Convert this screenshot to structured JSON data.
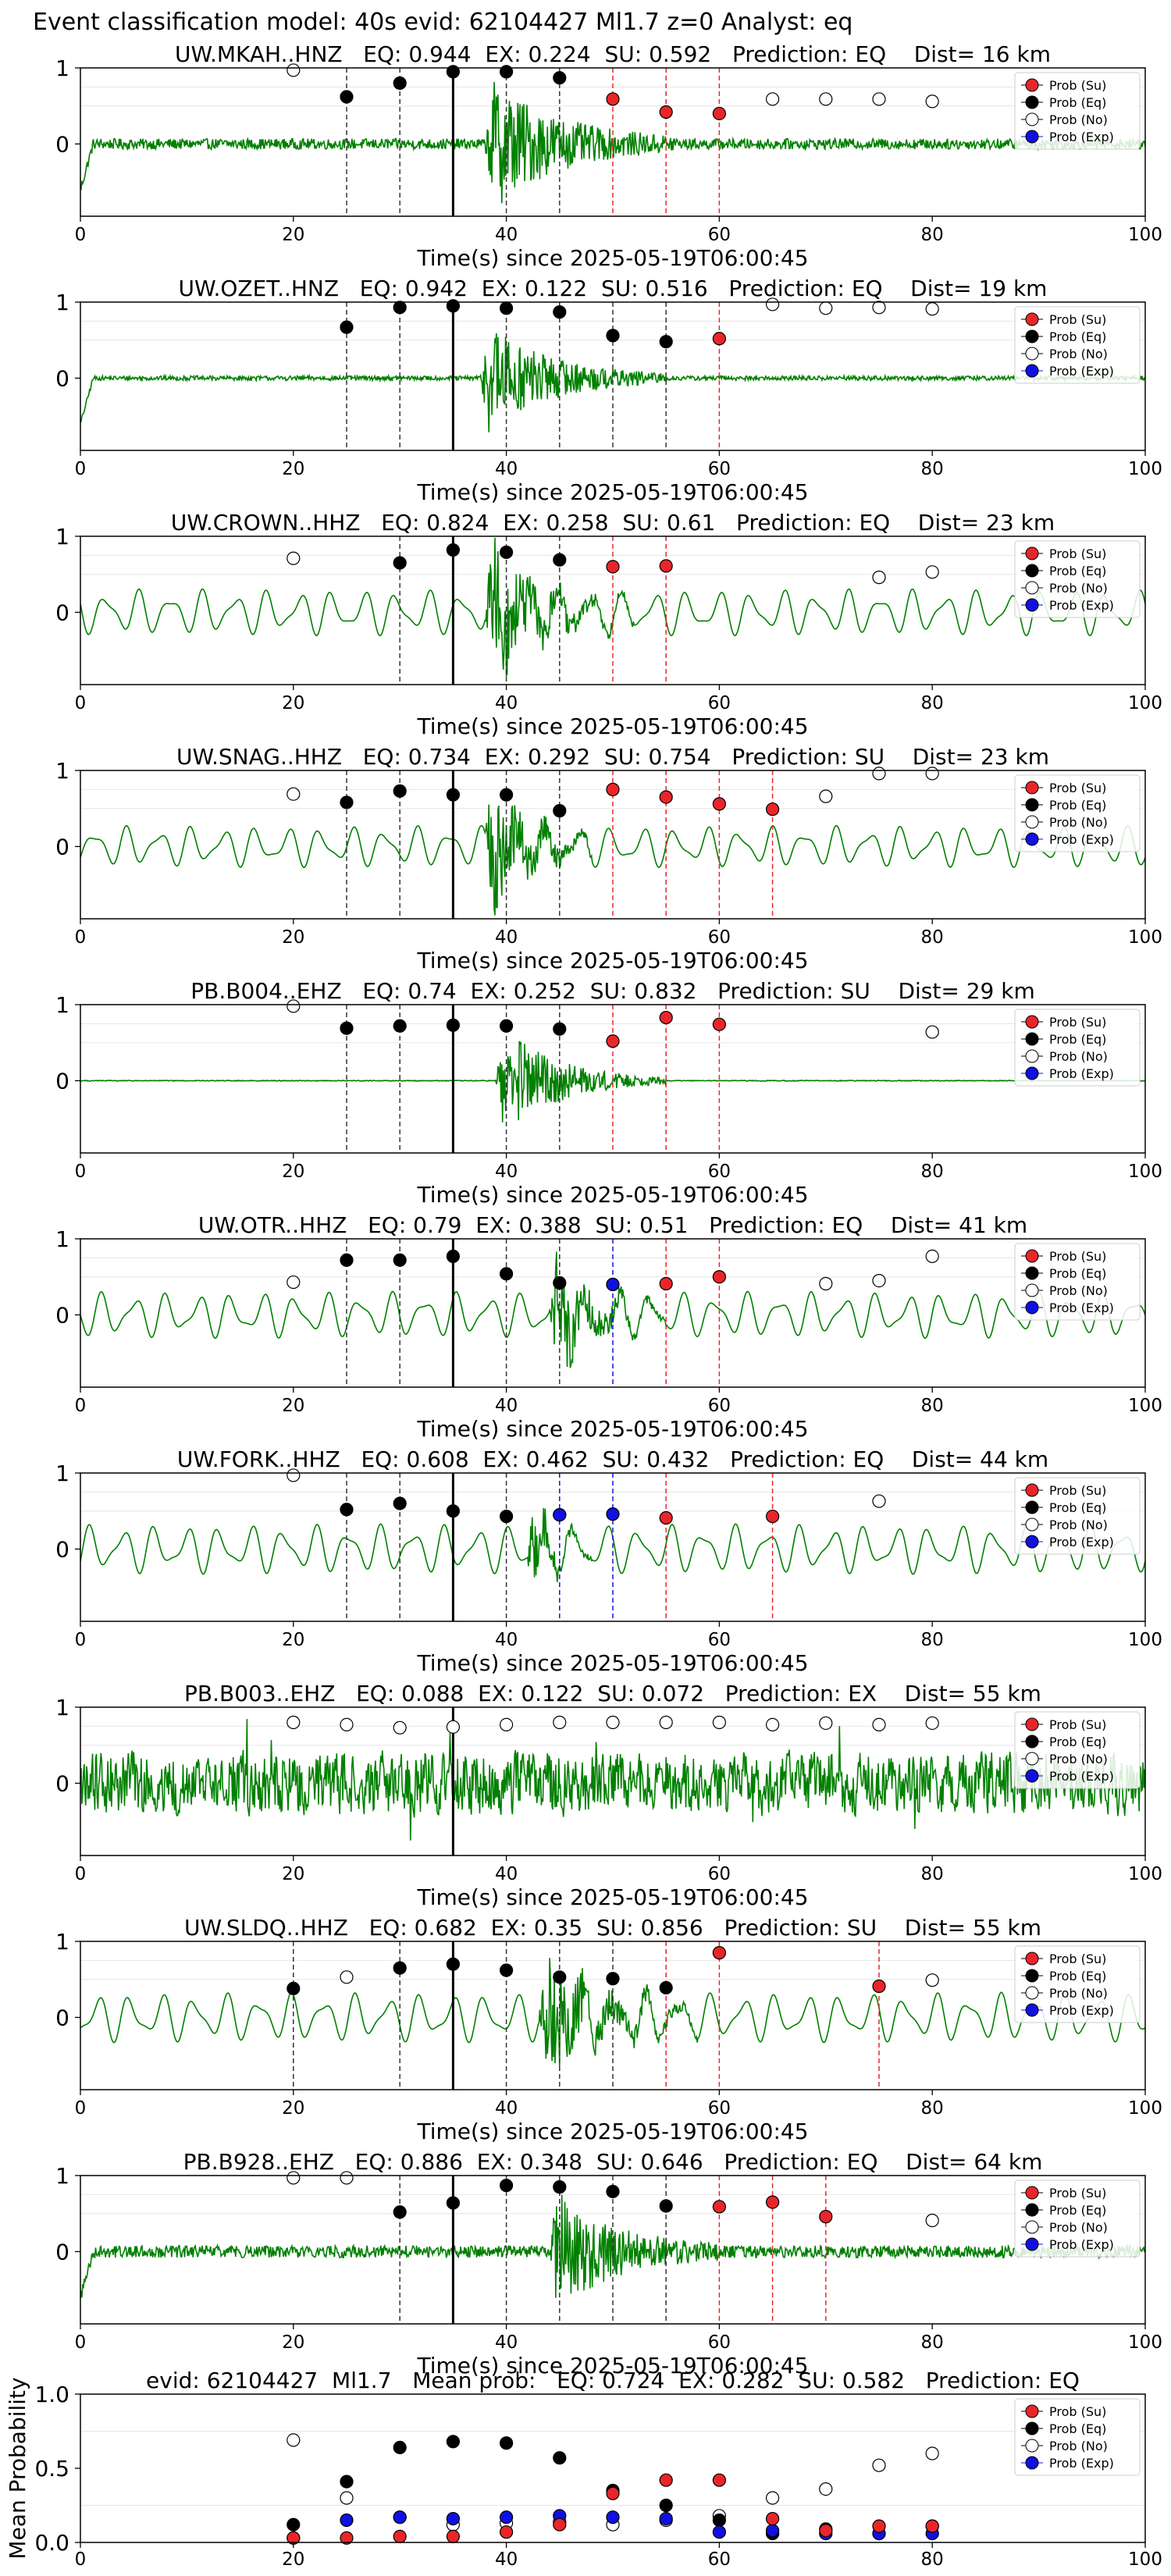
{
  "suptitle": "Event classification model: 40s evid: 62104427 Ml1.7 z=0 Analyst: eq",
  "legend": {
    "su": "Prob (Su)",
    "eq": "Prob (Eq)",
    "no": "Prob (No)",
    "exp": "Prob (Exp)"
  },
  "colors": {
    "su": "#e8262a",
    "eq": "#000000",
    "no": "#ffffff",
    "exp": "#1010e0",
    "waveform": "#008000",
    "pick": "#000000"
  },
  "chart_data": [
    {
      "type": "line",
      "title": "UW.MKAH..HNZ   EQ: 0.944  EX: 0.224  SU: 0.592   Prediction: EQ    Dist= 16 km",
      "xlabel": "Time(s) since 2025-05-19T06:00:45",
      "xlim": [
        0,
        100
      ],
      "ylim": [
        -0.95,
        1
      ],
      "xticks": [
        "0",
        "20",
        "40",
        "60",
        "80",
        "100"
      ],
      "yticks": [
        "1",
        "0"
      ],
      "pick_time": 35,
      "waveform": {
        "style": "local",
        "onset": 38,
        "end": 56,
        "bg_amp": 0.07,
        "ev_amp": 0.5
      },
      "eq_windows": [
        25,
        30,
        40,
        45
      ],
      "su_windows": [
        50,
        55,
        60
      ],
      "exp_windows": [],
      "eq_points": [
        [
          25,
          0.62
        ],
        [
          30,
          0.8
        ],
        [
          35,
          0.95
        ],
        [
          40,
          0.95
        ],
        [
          45,
          0.87
        ]
      ],
      "su_points": [
        [
          50,
          0.59
        ],
        [
          55,
          0.42
        ],
        [
          60,
          0.4
        ]
      ],
      "no_points": [
        [
          20,
          0.97
        ],
        [
          65,
          0.59
        ],
        [
          70,
          0.59
        ],
        [
          75,
          0.59
        ],
        [
          80,
          0.56
        ]
      ],
      "exp_points": []
    },
    {
      "type": "line",
      "title": "UW.OZET..HNZ   EQ: 0.942  EX: 0.122  SU: 0.516   Prediction: EQ    Dist= 19 km",
      "xlabel": "Time(s) since 2025-05-19T06:00:45",
      "xlim": [
        0,
        100
      ],
      "ylim": [
        -0.95,
        1
      ],
      "xticks": [
        "0",
        "20",
        "40",
        "60",
        "80",
        "100"
      ],
      "yticks": [
        "1",
        "0"
      ],
      "pick_time": 35,
      "waveform": {
        "style": "local",
        "onset": 37.5,
        "end": 55,
        "bg_amp": 0.03,
        "ev_amp": 0.45
      },
      "eq_windows": [
        25,
        30,
        40,
        45,
        50,
        55
      ],
      "su_windows": [
        60
      ],
      "exp_windows": [],
      "eq_points": [
        [
          25,
          0.67
        ],
        [
          30,
          0.93
        ],
        [
          35,
          0.95
        ],
        [
          40,
          0.92
        ],
        [
          45,
          0.87
        ],
        [
          50,
          0.56
        ],
        [
          55,
          0.48
        ]
      ],
      "su_points": [
        [
          60,
          0.52
        ]
      ],
      "no_points": [
        [
          65,
          0.97
        ],
        [
          70,
          0.92
        ],
        [
          75,
          0.93
        ],
        [
          80,
          0.91
        ]
      ],
      "exp_points": []
    },
    {
      "type": "line",
      "title": "UW.CROWN..HHZ   EQ: 0.824  EX: 0.258  SU: 0.61   Prediction: EQ    Dist= 23 km",
      "xlabel": "Time(s) since 2025-05-19T06:00:45",
      "xlim": [
        0,
        100
      ],
      "ylim": [
        -0.95,
        1
      ],
      "xticks": [
        "0",
        "20",
        "40",
        "60",
        "80",
        "100"
      ],
      "yticks": [
        "1",
        "0"
      ],
      "pick_time": 35,
      "waveform": {
        "style": "osc",
        "onset": 38,
        "end": 52,
        "bg_amp": 0.28,
        "ev_amp": 0.5
      },
      "eq_windows": [
        30,
        40,
        45
      ],
      "su_windows": [
        50,
        55
      ],
      "exp_windows": [],
      "eq_points": [
        [
          30,
          0.65
        ],
        [
          35,
          0.82
        ],
        [
          40,
          0.79
        ],
        [
          45,
          0.69
        ]
      ],
      "su_points": [
        [
          50,
          0.6
        ],
        [
          55,
          0.61
        ]
      ],
      "no_points": [
        [
          20,
          0.71
        ],
        [
          75,
          0.46
        ],
        [
          80,
          0.53
        ]
      ],
      "exp_points": []
    },
    {
      "type": "line",
      "title": "UW.SNAG..HHZ   EQ: 0.734  EX: 0.292  SU: 0.754   Prediction: SU    Dist= 23 km",
      "xlabel": "Time(s) since 2025-05-19T06:00:45",
      "xlim": [
        0,
        100
      ],
      "ylim": [
        -0.95,
        1
      ],
      "xticks": [
        "0",
        "20",
        "40",
        "60",
        "80",
        "100"
      ],
      "yticks": [
        "1",
        "0"
      ],
      "pick_time": 35,
      "waveform": {
        "style": "osc",
        "onset": 38,
        "end": 48,
        "bg_amp": 0.25,
        "ev_amp": 0.55
      },
      "eq_windows": [
        25,
        30,
        40,
        45
      ],
      "su_windows": [
        50,
        55,
        60,
        65
      ],
      "exp_windows": [],
      "eq_points": [
        [
          25,
          0.58
        ],
        [
          30,
          0.73
        ],
        [
          35,
          0.68
        ],
        [
          40,
          0.68
        ],
        [
          45,
          0.47
        ]
      ],
      "su_points": [
        [
          50,
          0.75
        ],
        [
          55,
          0.65
        ],
        [
          60,
          0.56
        ],
        [
          65,
          0.49
        ]
      ],
      "no_points": [
        [
          20,
          0.69
        ],
        [
          70,
          0.66
        ],
        [
          75,
          0.96
        ],
        [
          80,
          0.96
        ]
      ],
      "exp_points": []
    },
    {
      "type": "line",
      "title": "PB.B004..EHZ   EQ: 0.74  EX: 0.252  SU: 0.832   Prediction: SU    Dist= 29 km",
      "xlabel": "Time(s) since 2025-05-19T06:00:45",
      "xlim": [
        0,
        100
      ],
      "ylim": [
        -0.95,
        1
      ],
      "xticks": [
        "0",
        "20",
        "40",
        "60",
        "80",
        "100"
      ],
      "yticks": [
        "1",
        "0"
      ],
      "pick_time": 35,
      "waveform": {
        "style": "quiet",
        "onset": 39,
        "end": 55,
        "bg_amp": 0.005,
        "ev_amp": 0.45
      },
      "eq_windows": [
        25,
        30,
        40,
        45
      ],
      "su_windows": [
        50,
        55,
        60
      ],
      "exp_windows": [],
      "eq_points": [
        [
          25,
          0.69
        ],
        [
          30,
          0.72
        ],
        [
          35,
          0.73
        ],
        [
          40,
          0.72
        ],
        [
          45,
          0.68
        ]
      ],
      "su_points": [
        [
          50,
          0.52
        ],
        [
          55,
          0.83
        ],
        [
          60,
          0.74
        ]
      ],
      "no_points": [
        [
          20,
          0.98
        ],
        [
          80,
          0.64
        ]
      ],
      "exp_points": []
    },
    {
      "type": "line",
      "title": "UW.OTR..HHZ   EQ: 0.79  EX: 0.388  SU: 0.51   Prediction: EQ    Dist= 41 km",
      "xlabel": "Time(s) since 2025-05-19T06:00:45",
      "xlim": [
        0,
        100
      ],
      "ylim": [
        -0.95,
        1
      ],
      "xticks": [
        "0",
        "20",
        "40",
        "60",
        "80",
        "100"
      ],
      "yticks": [
        "1",
        "0"
      ],
      "pick_time": 35,
      "waveform": {
        "style": "osc",
        "onset": 44,
        "end": 55,
        "bg_amp": 0.28,
        "ev_amp": 0.4
      },
      "eq_windows": [
        25,
        30,
        40,
        45
      ],
      "su_windows": [
        55,
        60
      ],
      "exp_windows": [
        50
      ],
      "eq_points": [
        [
          25,
          0.72
        ],
        [
          30,
          0.72
        ],
        [
          35,
          0.77
        ],
        [
          40,
          0.54
        ],
        [
          45,
          0.42
        ]
      ],
      "su_points": [
        [
          50,
          0.4
        ],
        [
          55,
          0.41
        ],
        [
          60,
          0.5
        ]
      ],
      "no_points": [
        [
          20,
          0.43
        ],
        [
          70,
          0.41
        ],
        [
          75,
          0.45
        ],
        [
          80,
          0.77
        ]
      ],
      "exp_points": [
        [
          50,
          0.4
        ]
      ]
    },
    {
      "type": "line",
      "title": "UW.FORK..HHZ   EQ: 0.608  EX: 0.462  SU: 0.432   Prediction: EQ    Dist= 44 km",
      "xlabel": "Time(s) since 2025-05-19T06:00:45",
      "xlim": [
        0,
        100
      ],
      "ylim": [
        -0.95,
        1
      ],
      "xticks": [
        "0",
        "20",
        "40",
        "60",
        "80",
        "100"
      ],
      "yticks": [
        "1",
        "0"
      ],
      "pick_time": 35,
      "waveform": {
        "style": "osc",
        "onset": 42,
        "end": 48,
        "bg_amp": 0.3,
        "ev_amp": 0.35
      },
      "eq_windows": [
        25,
        30,
        40
      ],
      "su_windows": [
        55,
        65
      ],
      "exp_windows": [
        45,
        50
      ],
      "eq_points": [
        [
          25,
          0.52
        ],
        [
          30,
          0.6
        ],
        [
          35,
          0.5
        ],
        [
          40,
          0.43
        ]
      ],
      "su_points": [
        [
          45,
          0.45
        ],
        [
          55,
          0.41
        ],
        [
          65,
          0.43
        ]
      ],
      "no_points": [
        [
          20,
          0.97
        ],
        [
          75,
          0.63
        ]
      ],
      "exp_points": [
        [
          45,
          0.45
        ],
        [
          50,
          0.46
        ]
      ]
    },
    {
      "type": "line",
      "title": "PB.B003..EHZ   EQ: 0.088  EX: 0.122  SU: 0.072   Prediction: EX    Dist= 55 km",
      "xlabel": "Time(s) since 2025-05-19T06:00:45",
      "xlim": [
        0,
        100
      ],
      "ylim": [
        -0.95,
        1
      ],
      "xticks": [
        "0",
        "20",
        "40",
        "60",
        "80",
        "100"
      ],
      "yticks": [
        "1",
        "0"
      ],
      "pick_time": 35,
      "waveform": {
        "style": "noise",
        "onset": 0,
        "end": 0,
        "bg_amp": 0.38,
        "ev_amp": 0
      },
      "eq_windows": [],
      "su_windows": [],
      "exp_windows": [],
      "eq_points": [],
      "su_points": [],
      "no_points": [
        [
          20,
          0.8
        ],
        [
          25,
          0.77
        ],
        [
          30,
          0.73
        ],
        [
          35,
          0.74
        ],
        [
          40,
          0.77
        ],
        [
          45,
          0.8
        ],
        [
          50,
          0.8
        ],
        [
          55,
          0.8
        ],
        [
          60,
          0.8
        ],
        [
          65,
          0.77
        ],
        [
          70,
          0.79
        ],
        [
          75,
          0.77
        ],
        [
          80,
          0.79
        ]
      ],
      "exp_points": []
    },
    {
      "type": "line",
      "title": "UW.SLDQ..HHZ   EQ: 0.682  EX: 0.35  SU: 0.856   Prediction: SU    Dist= 55 km",
      "xlabel": "Time(s) since 2025-05-19T06:00:45",
      "xlim": [
        0,
        100
      ],
      "ylim": [
        -0.95,
        1
      ],
      "xticks": [
        "0",
        "20",
        "40",
        "60",
        "80",
        "100"
      ],
      "yticks": [
        "1",
        "0"
      ],
      "pick_time": 35,
      "waveform": {
        "style": "osc",
        "onset": 43,
        "end": 58,
        "bg_amp": 0.3,
        "ev_amp": 0.5
      },
      "eq_windows": [
        20,
        30,
        40,
        45,
        50
      ],
      "su_windows": [
        55,
        60,
        75
      ],
      "exp_windows": [],
      "eq_points": [
        [
          20,
          0.38
        ],
        [
          30,
          0.65
        ],
        [
          35,
          0.7
        ],
        [
          40,
          0.62
        ],
        [
          45,
          0.53
        ],
        [
          50,
          0.51
        ],
        [
          55,
          0.39
        ]
      ],
      "su_points": [
        [
          60,
          0.85
        ],
        [
          75,
          0.41
        ]
      ],
      "no_points": [
        [
          25,
          0.53
        ],
        [
          80,
          0.49
        ]
      ],
      "exp_points": []
    },
    {
      "type": "line",
      "title": "PB.B928..EHZ   EQ: 0.886  EX: 0.348  SU: 0.646   Prediction: EQ    Dist= 64 km",
      "xlabel": "Time(s) since 2025-05-19T06:00:45",
      "xlim": [
        0,
        100
      ],
      "ylim": [
        -0.95,
        1
      ],
      "xticks": [
        "0",
        "20",
        "40",
        "60",
        "80",
        "100"
      ],
      "yticks": [
        "1",
        "0"
      ],
      "pick_time": 35,
      "waveform": {
        "style": "local",
        "onset": 44,
        "end": 60,
        "bg_amp": 0.08,
        "ev_amp": 0.45
      },
      "eq_windows": [
        30,
        40,
        45,
        50,
        55
      ],
      "su_windows": [
        60,
        65,
        70
      ],
      "exp_windows": [],
      "eq_points": [
        [
          30,
          0.52
        ],
        [
          35,
          0.64
        ],
        [
          40,
          0.87
        ],
        [
          45,
          0.85
        ],
        [
          50,
          0.79
        ],
        [
          55,
          0.6
        ]
      ],
      "su_points": [
        [
          60,
          0.59
        ],
        [
          65,
          0.65
        ],
        [
          70,
          0.46
        ]
      ],
      "no_points": [
        [
          20,
          0.97
        ],
        [
          25,
          0.97
        ],
        [
          80,
          0.41
        ]
      ],
      "exp_points": []
    },
    {
      "type": "scatter",
      "title": "evid: 62104427  Ml1.7   Mean prob:   EQ: 0.724  EX: 0.282  SU: 0.582   Prediction: EQ",
      "xlabel": "",
      "ylabel": "Mean Probability",
      "xlim": [
        0,
        100
      ],
      "ylim": [
        0,
        1
      ],
      "xticks": [
        "0",
        "20",
        "40",
        "60",
        "80",
        "100"
      ],
      "yticks": [
        "1.0",
        "0.5",
        "0.0"
      ],
      "eq_points": [
        [
          20,
          0.12
        ],
        [
          25,
          0.41
        ],
        [
          30,
          0.64
        ],
        [
          35,
          0.68
        ],
        [
          40,
          0.67
        ],
        [
          45,
          0.57
        ],
        [
          50,
          0.35
        ],
        [
          55,
          0.25
        ],
        [
          60,
          0.15
        ],
        [
          65,
          0.06
        ],
        [
          70,
          0.09
        ],
        [
          75,
          0.06
        ],
        [
          80,
          0.11
        ]
      ],
      "su_points": [
        [
          20,
          0.03
        ],
        [
          25,
          0.03
        ],
        [
          30,
          0.04
        ],
        [
          35,
          0.04
        ],
        [
          40,
          0.07
        ],
        [
          45,
          0.12
        ],
        [
          50,
          0.33
        ],
        [
          55,
          0.42
        ],
        [
          60,
          0.42
        ],
        [
          65,
          0.16
        ],
        [
          70,
          0.08
        ],
        [
          75,
          0.11
        ],
        [
          80,
          0.11
        ]
      ],
      "no_points": [
        [
          20,
          0.69
        ],
        [
          25,
          0.3
        ],
        [
          30,
          0.17
        ],
        [
          35,
          0.12
        ],
        [
          40,
          0.13
        ],
        [
          45,
          0.14
        ],
        [
          50,
          0.12
        ],
        [
          55,
          0.15
        ],
        [
          60,
          0.18
        ],
        [
          65,
          0.3
        ],
        [
          70,
          0.36
        ],
        [
          75,
          0.52
        ],
        [
          80,
          0.6
        ]
      ],
      "exp_points": [
        [
          20,
          0.03
        ],
        [
          25,
          0.15
        ],
        [
          30,
          0.17
        ],
        [
          35,
          0.16
        ],
        [
          40,
          0.17
        ],
        [
          45,
          0.18
        ],
        [
          50,
          0.17
        ],
        [
          55,
          0.16
        ],
        [
          60,
          0.07
        ],
        [
          65,
          0.08
        ],
        [
          70,
          0.06
        ],
        [
          75,
          0.06
        ],
        [
          80,
          0.06
        ]
      ]
    }
  ]
}
